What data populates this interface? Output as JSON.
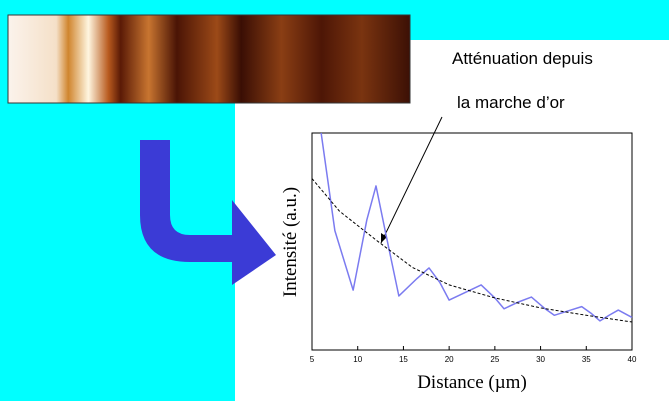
{
  "chart_data": {
    "type": "line",
    "xlabel": "Distance (µm)",
    "ylabel": "Intensité (a.u.)",
    "annotations": [
      "Atténuation depuis",
      "la marche d’or"
    ],
    "xlim": [
      5,
      40
    ],
    "xticks": [
      5,
      10,
      15,
      20,
      25,
      30,
      35,
      40
    ],
    "ylim": [
      0,
      10
    ],
    "series": [
      {
        "color": "#7b7bf0",
        "dash": false,
        "x": [
          6,
          7.5,
          9.5,
          11,
          12,
          13,
          14.5,
          16.5,
          17.8,
          19,
          20,
          22,
          23.5,
          25,
          26,
          27.5,
          29,
          30.5,
          31.5,
          33,
          34.5,
          35.5,
          36.5,
          37.5,
          38.5,
          40
        ],
        "values": [
          10,
          5.5,
          2.76,
          6,
          7.56,
          5.5,
          2.49,
          3.3,
          3.78,
          3.1,
          2.3,
          2.7,
          3.0,
          2.4,
          1.9,
          2.2,
          2.44,
          1.9,
          1.6,
          1.8,
          2.0,
          1.7,
          1.34,
          1.6,
          1.84,
          1.5
        ]
      },
      {
        "color": "#000000",
        "dash": true,
        "x": [
          5,
          8,
          12,
          16,
          20,
          25,
          30,
          35,
          40
        ],
        "values": [
          7.9,
          6.4,
          5.07,
          3.8,
          3.0,
          2.4,
          1.94,
          1.6,
          1.29
        ]
      }
    ]
  }
}
